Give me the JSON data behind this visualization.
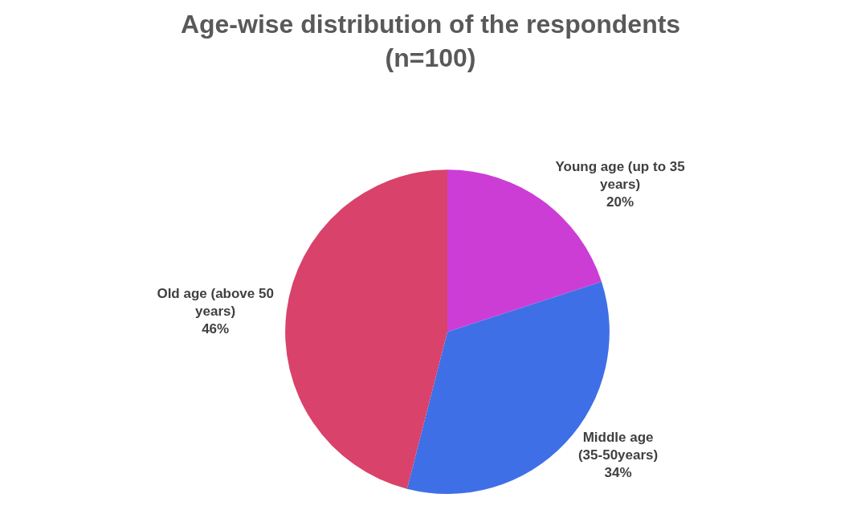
{
  "chart_data": {
    "type": "pie",
    "title": "Age-wise distribution of the respondents (n=100)",
    "categories": [
      "Young age (up to 35 years)",
      "Middle age (35-50years)",
      "Old age (above 50 years)"
    ],
    "values": [
      20,
      34,
      46
    ],
    "value_labels": [
      "20%",
      "34%",
      "46%"
    ],
    "colors": [
      "#cc3dd6",
      "#3f6fe6",
      "#d9426a"
    ],
    "legend": false
  }
}
